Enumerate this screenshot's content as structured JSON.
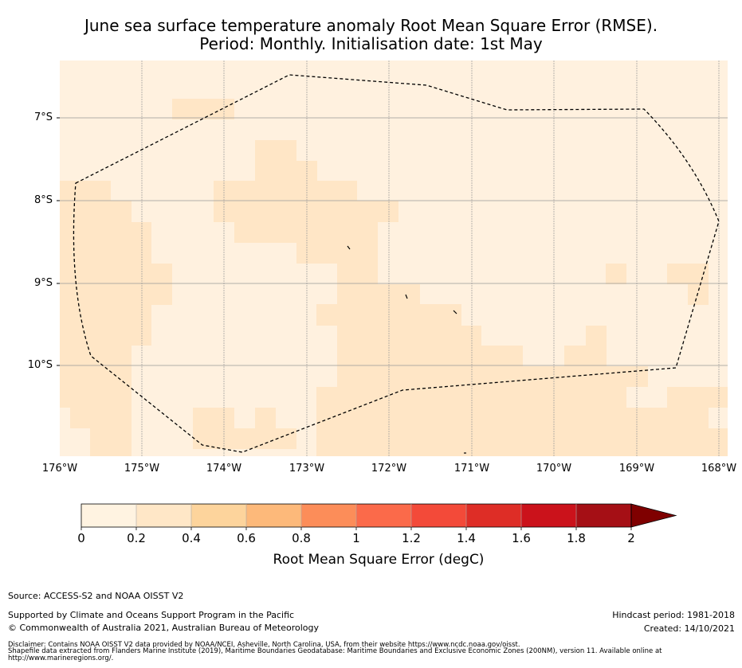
{
  "title": {
    "line1": "June sea surface temperature anomaly Root Mean Square Error (RMSE).",
    "line2": "Period: Monthly. Initialisation date: 1st May"
  },
  "map": {
    "lat_labels": [
      "7°S",
      "8°S",
      "9°S",
      "10°S"
    ],
    "lon_labels": [
      "176°W",
      "175°W",
      "174°W",
      "173°W",
      "172°W",
      "171°W",
      "170°W",
      "169°W",
      "168°W"
    ],
    "boundary": "Tuvalu EEZ (dashed)"
  },
  "colorbar": {
    "label": "Root Mean Square Error (degC)",
    "ticks": [
      "0",
      "0.2",
      "0.4",
      "0.6",
      "0.8",
      "1",
      "1.2",
      "1.4",
      "1.6",
      "1.8",
      "2"
    ],
    "colors": [
      "#fff3e1",
      "#ffe7c7",
      "#fdd49c",
      "#fdb97a",
      "#fc8d59",
      "#fb6a4a",
      "#f34a39",
      "#de2d26",
      "#cb121b",
      "#a50f15",
      "#7f0000"
    ]
  },
  "footer": {
    "source": "Source: ACCESS-S2 and NOAA OISST V2",
    "support": "Supported by Climate and Oceans Support Program in the Pacific",
    "copyright": "© Commonwealth of Australia 2021, Australian Bureau of Meteorology",
    "hindcast": "Hindcast period: 1981-2018",
    "created": "Created: 14/10/2021",
    "disclaimer1": "Disclaimer: Contains NOAA OISST V2 data provided by NOAA/NCEI, Asheville, North Carolina, USA, from their website https://www.ncdc.noaa.gov/oisst.",
    "disclaimer2": "Shapefile data extracted from Flanders Marine Institute (2019), Maritime Boundaries Geodatabase: Maritime Boundaries and Exclusive Economic Zones (200NM), version 11. Available online at",
    "disclaimer3": "http://www.marineregions.org/."
  }
}
